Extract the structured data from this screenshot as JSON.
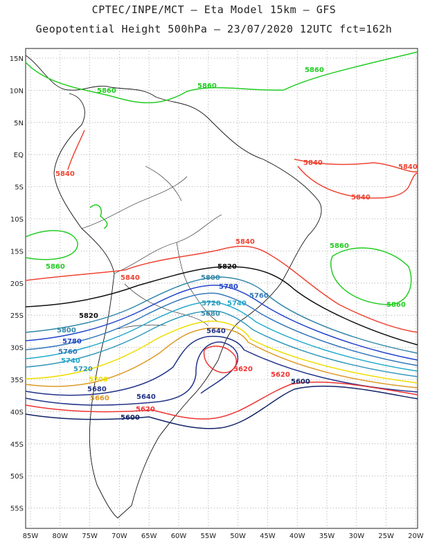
{
  "title_line1": "CPTEC/INPE/MCT –  Eta Model 15km – GFS",
  "title_line2": "Geopotential Height 500hPa – 23/07/2020 12UTC fct=162h",
  "axes": {
    "lat_labels": [
      "15N",
      "10N",
      "5N",
      "EQ",
      "5S",
      "10S",
      "15S",
      "20S",
      "25S",
      "30S",
      "35S",
      "40S",
      "45S",
      "50S",
      "55S"
    ],
    "lon_labels": [
      "85W",
      "80W",
      "75W",
      "70W",
      "65W",
      "60W",
      "55W",
      "50W",
      "45W",
      "40W",
      "35W",
      "30W",
      "25W",
      "20W"
    ]
  },
  "contours": [
    {
      "level": "5860",
      "color": "#22cc22",
      "labels": [
        "5860",
        "5860",
        "5860",
        "5860",
        "5860",
        "5860"
      ]
    },
    {
      "level": "5840",
      "color": "#ee4433",
      "labels": [
        "5840",
        "5840",
        "5840",
        "5840",
        "5840",
        "5840"
      ]
    },
    {
      "level": "5820",
      "color": "#111111",
      "labels": [
        "5820",
        "5820"
      ]
    },
    {
      "level": "5800",
      "color": "#3388aa",
      "labels": [
        "5800",
        "5800"
      ]
    },
    {
      "level": "5780",
      "color": "#2244cc",
      "labels": [
        "5780",
        "5780"
      ]
    },
    {
      "level": "5760",
      "color": "#3377bb",
      "labels": [
        "5760",
        "5760"
      ]
    },
    {
      "level": "5740",
      "color": "#22aacc",
      "labels": [
        "5740",
        "5740"
      ]
    },
    {
      "level": "5720",
      "color": "#3399bb",
      "labels": [
        "5720",
        "5720"
      ]
    },
    {
      "level": "5700",
      "color": "#eedd00",
      "labels": [
        "5700"
      ]
    },
    {
      "level": "5680",
      "color": "#dd9922",
      "labels": [
        "5680",
        "5680"
      ]
    },
    {
      "level": "5660",
      "color": "#223388",
      "labels": [
        "5660"
      ]
    },
    {
      "level": "5640",
      "color": "#223388",
      "labels": [
        "5640",
        "5640"
      ]
    },
    {
      "level": "5620",
      "color": "#ee3333",
      "labels": [
        "5620",
        "5620",
        "5620"
      ]
    },
    {
      "level": "5600",
      "color": "#112266",
      "labels": [
        "5600",
        "5600"
      ]
    }
  ]
}
